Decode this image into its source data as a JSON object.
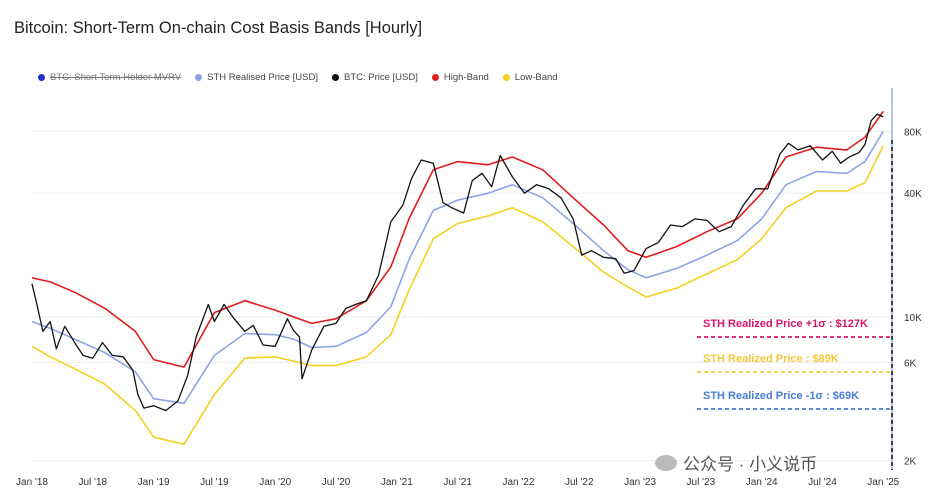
{
  "chart_data": {
    "type": "line",
    "title": "Bitcoin: Short-Term On-chain Cost Basis Bands [Hourly]",
    "legend_position": "top-left",
    "legend": [
      {
        "name": "BTC: Short Term Holder MVRV",
        "color": "#1f2fbf",
        "disabled": true
      },
      {
        "name": "STH Realised Price [USD]",
        "color": "#8fa3e8"
      },
      {
        "name": "BTC: Price [USD]",
        "color": "#111111"
      },
      {
        "name": "High-Band",
        "color": "#e01d1d"
      },
      {
        "name": "Low-Band",
        "color": "#f5d020"
      }
    ],
    "x_ticks": [
      "Jan '18",
      "Jul '18",
      "Jan '19",
      "Jul '19",
      "Jan '20",
      "Jul '20",
      "Jan '21",
      "Jul '21",
      "Jan '22",
      "Jul '22",
      "Jan '23",
      "Jul '23",
      "Jan '24",
      "Jul '24",
      "Jan '25"
    ],
    "y_scale": "log",
    "y_ticks": [
      {
        "label": "2K",
        "value": 2000
      },
      {
        "label": "6K",
        "value": 6000
      },
      {
        "label": "10K",
        "value": 10000
      },
      {
        "label": "40K",
        "value": 40000
      },
      {
        "label": "80K",
        "value": 80000
      }
    ],
    "x_range": [
      2018.0,
      2025.08
    ],
    "y_range": [
      1800,
      130000
    ],
    "grid": true,
    "series": [
      {
        "name": "High-Band",
        "color": "#e01d1d",
        "x": [
          2018.0,
          2018.15,
          2018.35,
          2018.6,
          2018.85,
          2019.0,
          2019.25,
          2019.5,
          2019.75,
          2020.0,
          2020.15,
          2020.3,
          2020.5,
          2020.75,
          2020.95,
          2021.1,
          2021.3,
          2021.5,
          2021.75,
          2021.95,
          2022.2,
          2022.45,
          2022.7,
          2022.9,
          2023.05,
          2023.3,
          2023.55,
          2023.8,
          2024.0,
          2024.2,
          2024.45,
          2024.7,
          2024.85,
          2025.0
        ],
        "values": [
          15500,
          14800,
          13200,
          11000,
          8500,
          6200,
          5700,
          10500,
          12000,
          10800,
          10000,
          9300,
          9800,
          12000,
          17500,
          30000,
          52000,
          57000,
          55000,
          60000,
          52000,
          38000,
          28000,
          21000,
          19500,
          22000,
          26000,
          30000,
          40000,
          60000,
          67000,
          65000,
          75000,
          100000
        ]
      },
      {
        "name": "STH Realised Price [USD]",
        "color": "#8fa3e8",
        "x": [
          2018.0,
          2018.15,
          2018.35,
          2018.6,
          2018.85,
          2019.0,
          2019.25,
          2019.5,
          2019.75,
          2020.0,
          2020.15,
          2020.3,
          2020.5,
          2020.75,
          2020.95,
          2021.1,
          2021.3,
          2021.5,
          2021.75,
          2021.95,
          2022.2,
          2022.45,
          2022.7,
          2022.9,
          2023.05,
          2023.3,
          2023.55,
          2023.8,
          2024.0,
          2024.2,
          2024.45,
          2024.7,
          2024.85,
          2025.0
        ],
        "values": [
          9500,
          8800,
          7800,
          6700,
          5400,
          4000,
          3800,
          6500,
          8300,
          8200,
          7800,
          7100,
          7200,
          8400,
          11200,
          19000,
          33000,
          37000,
          40000,
          44000,
          38000,
          28500,
          21000,
          17000,
          15500,
          17200,
          20000,
          23500,
          30000,
          44000,
          51000,
          50000,
          57000,
          80000
        ]
      },
      {
        "name": "Low-Band",
        "color": "#f5d020",
        "x": [
          2018.0,
          2018.15,
          2018.35,
          2018.6,
          2018.85,
          2019.0,
          2019.25,
          2019.5,
          2019.75,
          2020.0,
          2020.15,
          2020.3,
          2020.5,
          2020.75,
          2020.95,
          2021.1,
          2021.3,
          2021.5,
          2021.75,
          2021.95,
          2022.2,
          2022.45,
          2022.7,
          2022.9,
          2023.05,
          2023.3,
          2023.55,
          2023.8,
          2024.0,
          2024.2,
          2024.45,
          2024.7,
          2024.85,
          2025.0
        ],
        "values": [
          7200,
          6400,
          5600,
          4700,
          3500,
          2600,
          2400,
          4200,
          6300,
          6400,
          6100,
          5800,
          5800,
          6400,
          8200,
          13500,
          24000,
          28500,
          31000,
          34000,
          29000,
          22000,
          16500,
          14000,
          12500,
          13800,
          16200,
          19000,
          24000,
          34000,
          41000,
          41000,
          45000,
          68000
        ]
      },
      {
        "name": "BTC: Price [USD]",
        "color": "#111111",
        "x": [
          2018.0,
          2018.04,
          2018.09,
          2018.15,
          2018.2,
          2018.27,
          2018.35,
          2018.42,
          2018.5,
          2018.58,
          2018.66,
          2018.75,
          2018.83,
          2018.87,
          2018.92,
          2019.0,
          2019.1,
          2019.2,
          2019.28,
          2019.35,
          2019.45,
          2019.5,
          2019.58,
          2019.65,
          2019.75,
          2019.82,
          2019.9,
          2020.0,
          2020.1,
          2020.15,
          2020.2,
          2020.22,
          2020.3,
          2020.4,
          2020.5,
          2020.58,
          2020.66,
          2020.75,
          2020.85,
          2020.95,
          2021.05,
          2021.12,
          2021.2,
          2021.3,
          2021.38,
          2021.45,
          2021.55,
          2021.62,
          2021.7,
          2021.78,
          2021.85,
          2021.95,
          2022.05,
          2022.15,
          2022.25,
          2022.35,
          2022.45,
          2022.52,
          2022.6,
          2022.7,
          2022.8,
          2022.87,
          2022.95,
          2023.05,
          2023.15,
          2023.25,
          2023.35,
          2023.45,
          2023.55,
          2023.65,
          2023.75,
          2023.85,
          2023.95,
          2024.05,
          2024.15,
          2024.22,
          2024.3,
          2024.4,
          2024.5,
          2024.58,
          2024.65,
          2024.72,
          2024.8,
          2024.85,
          2024.9,
          2024.95,
          2025.0
        ],
        "values": [
          14500,
          11500,
          8500,
          9500,
          7000,
          9000,
          7500,
          6500,
          6300,
          7500,
          6500,
          6400,
          5500,
          4200,
          3600,
          3700,
          3500,
          3900,
          5200,
          8000,
          11500,
          9500,
          11500,
          10000,
          8500,
          9100,
          7300,
          7200,
          9800,
          8600,
          8000,
          5000,
          6900,
          9000,
          9300,
          11000,
          11500,
          12000,
          16000,
          29000,
          35000,
          47000,
          58000,
          56000,
          36000,
          34000,
          32000,
          46000,
          50000,
          43000,
          61000,
          48000,
          40000,
          44000,
          42000,
          38000,
          30000,
          20000,
          21000,
          19500,
          19200,
          16300,
          16800,
          21500,
          23000,
          28000,
          27500,
          30000,
          29500,
          26000,
          27500,
          35000,
          42000,
          42000,
          62000,
          70000,
          65000,
          68000,
          58000,
          64000,
          56000,
          60000,
          63000,
          69000,
          90000,
          97000,
          94000
        ]
      }
    ],
    "annotations": [
      {
        "text": "STH Realized Price +1σ : $127K",
        "color": "#d6156b"
      },
      {
        "text": "STH Realized Price  : $89K",
        "color": "#f0c93a"
      },
      {
        "text": "STH Realized Price -1σ : $69K",
        "color": "#4a7bd6"
      }
    ]
  },
  "watermark": "公众号 · 小义说币"
}
